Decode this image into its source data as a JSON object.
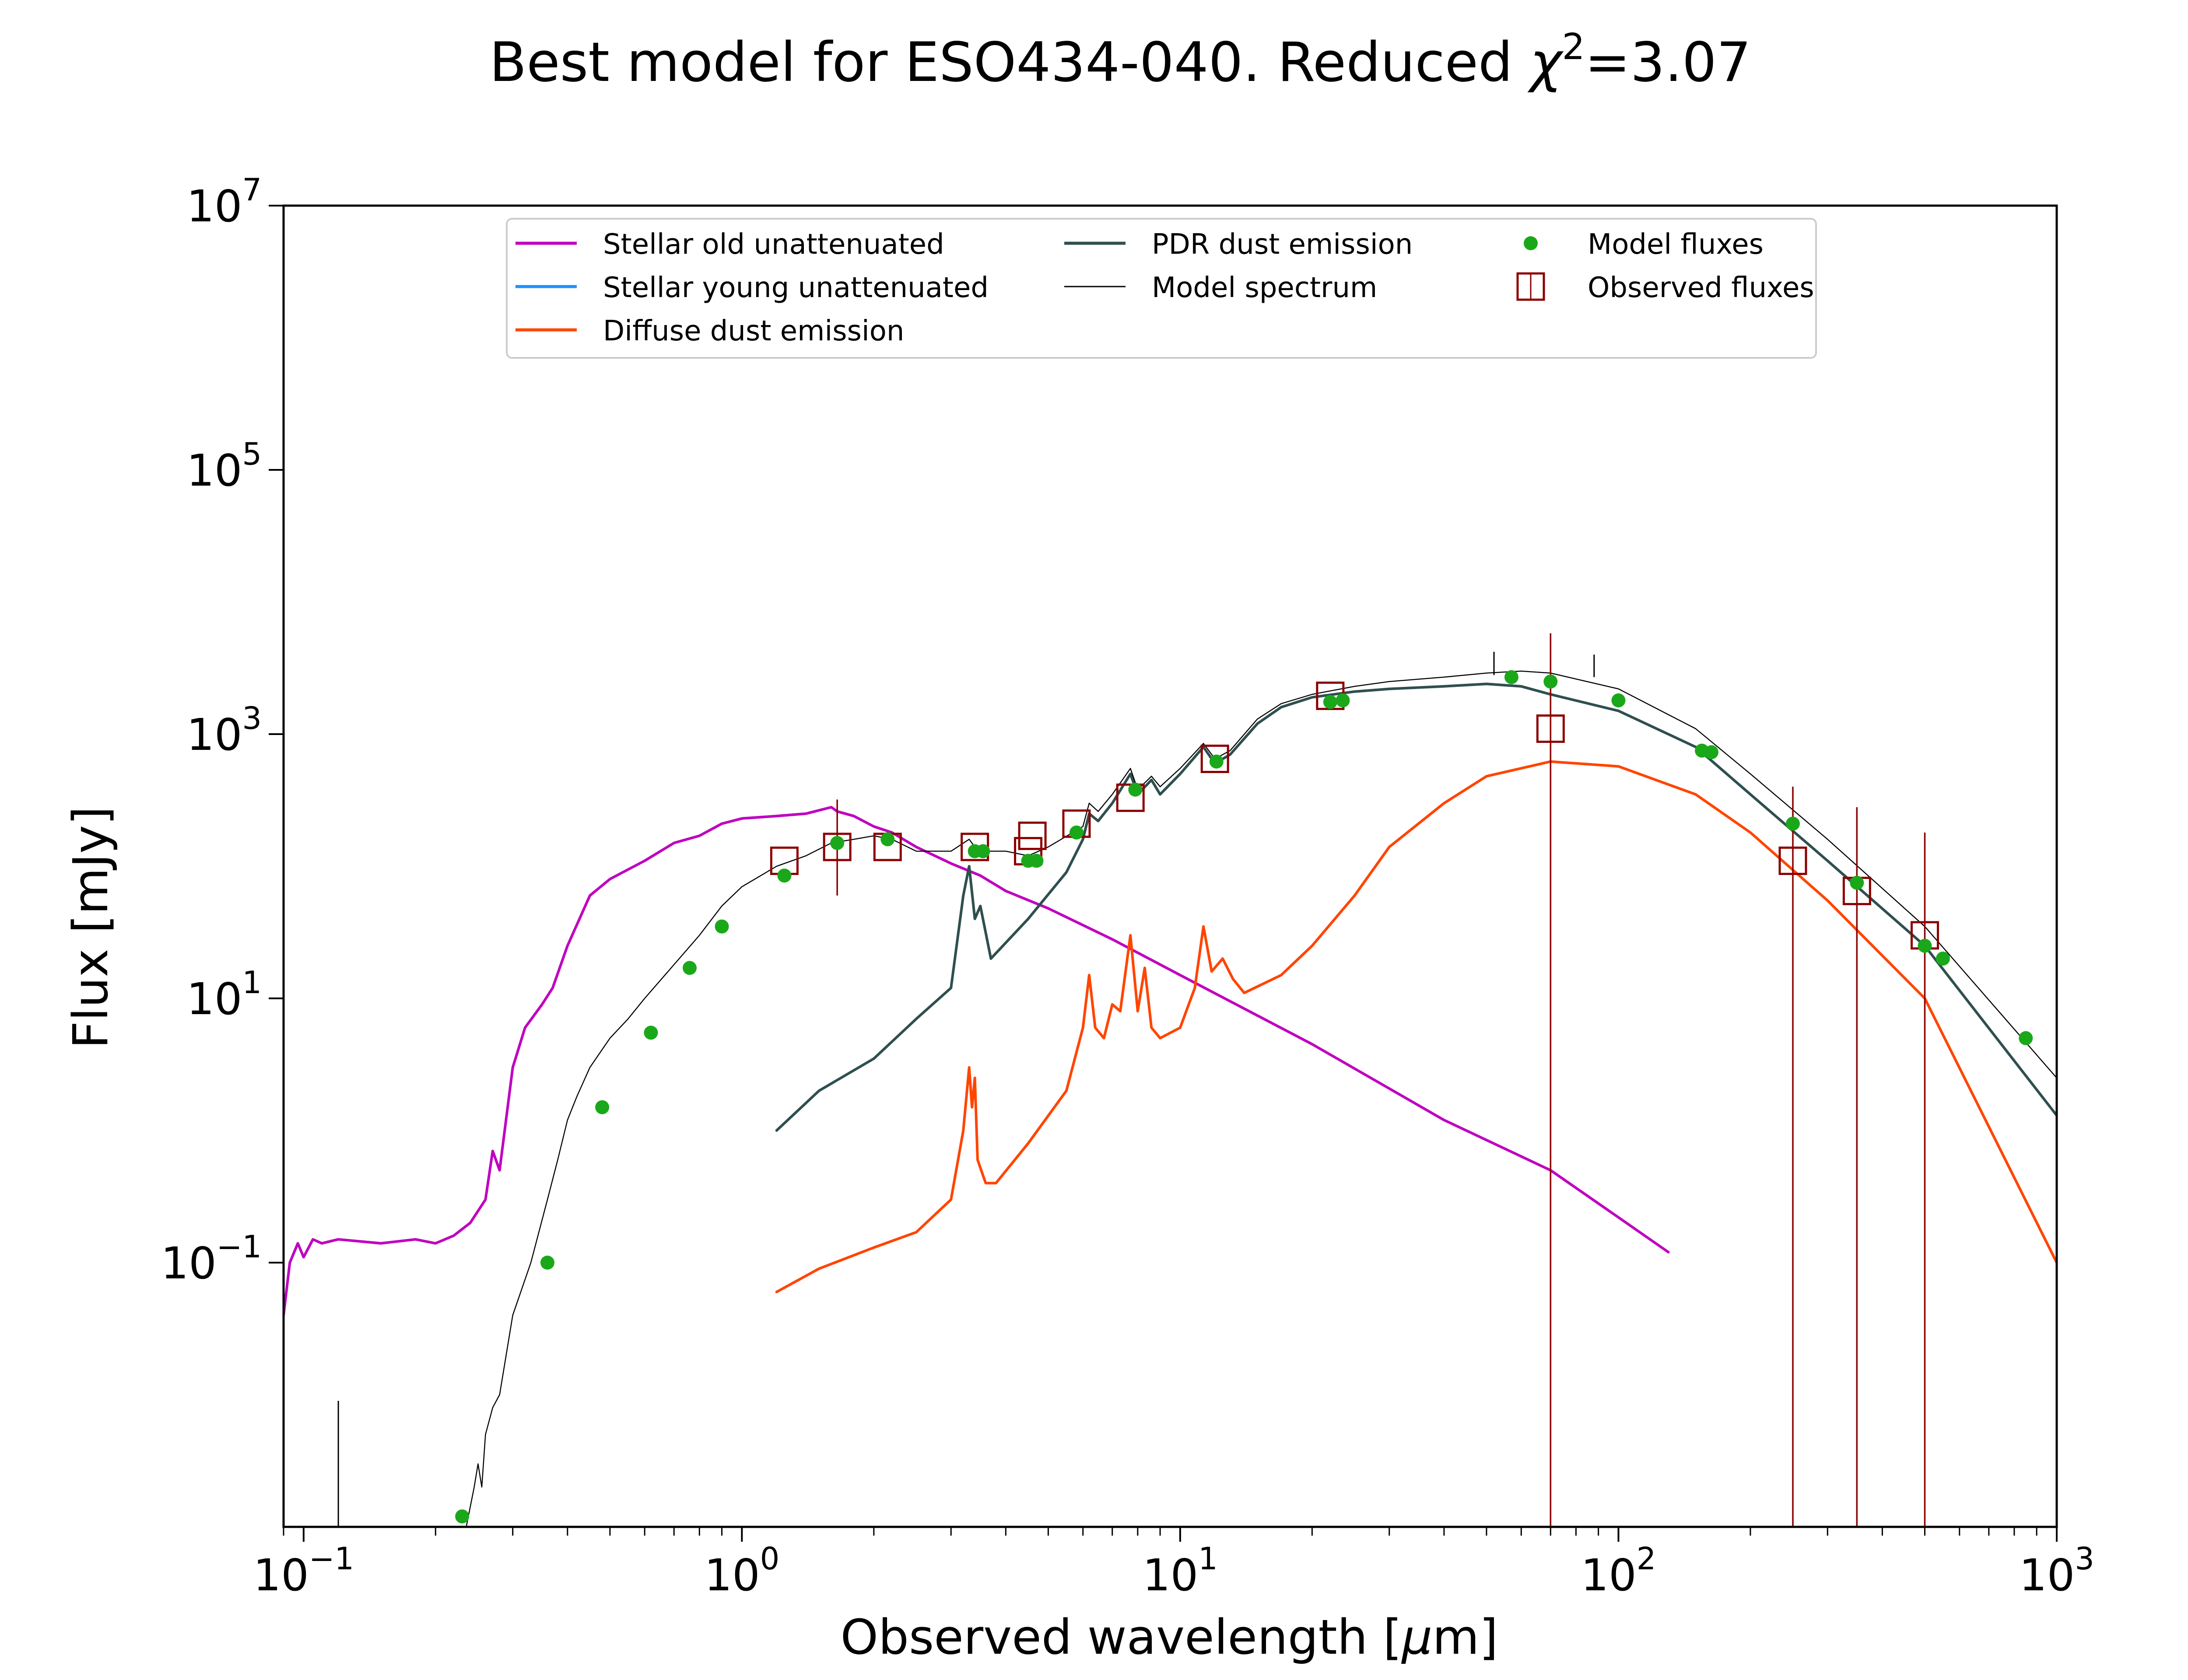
{
  "chart_data": {
    "type": "line",
    "title_main": "Best model for ESO434-040. Reduced ",
    "title_chi": "χ",
    "title_sup": "2",
    "title_value": "=3.07",
    "xlabel_main": "Observed wavelength [",
    "xlabel_mu": "μ",
    "xlabel_end": "m]",
    "ylabel": "Flux [mJy]",
    "x_scale": "log",
    "y_scale": "log",
    "xlim": [
      0.09,
      1000
    ],
    "ylim": [
      0.001,
      10000000
    ],
    "x_ticks": [
      {
        "value": 0.1,
        "base": "10",
        "exp": "−1"
      },
      {
        "value": 1,
        "base": "10",
        "exp": "0"
      },
      {
        "value": 10,
        "base": "10",
        "exp": "1"
      },
      {
        "value": 100,
        "base": "10",
        "exp": "2"
      },
      {
        "value": 1000,
        "base": "10",
        "exp": "3"
      }
    ],
    "y_ticks": [
      {
        "value": 0.1,
        "base": "10",
        "exp": "−1"
      },
      {
        "value": 10,
        "base": "10",
        "exp": "1"
      },
      {
        "value": 1000,
        "base": "10",
        "exp": "3"
      },
      {
        "value": 100000,
        "base": "10",
        "exp": "5"
      },
      {
        "value": 10000000,
        "base": "10",
        "exp": "7"
      }
    ],
    "legend": [
      {
        "label": "Stellar old unattenuated",
        "kind": "line",
        "color": "#bf00bf",
        "col": 0,
        "row": 0
      },
      {
        "label": "Stellar young unattenuated",
        "kind": "line",
        "color": "#1e90ff",
        "col": 0,
        "row": 1
      },
      {
        "label": "Diffuse dust emission",
        "kind": "line",
        "color": "#ff4500",
        "col": 0,
        "row": 2
      },
      {
        "label": "PDR dust emission",
        "kind": "line",
        "color": "#2f4f4f",
        "col": 1,
        "row": 0
      },
      {
        "label": "Model spectrum",
        "kind": "thinline",
        "color": "#000000",
        "col": 1,
        "row": 1
      },
      {
        "label": "Model fluxes",
        "kind": "dot",
        "color": "#1aa81a",
        "col": 2,
        "row": 0
      },
      {
        "label": "Observed fluxes",
        "kind": "square",
        "color": "#8b0000",
        "col": 2,
        "row": 1
      }
    ],
    "series": [
      {
        "name": "Stellar old unattenuated",
        "color": "#bf00bf",
        "width": 6,
        "x": [
          0.09,
          0.093,
          0.097,
          0.1,
          0.105,
          0.11,
          0.12,
          0.15,
          0.18,
          0.2,
          0.22,
          0.24,
          0.26,
          0.27,
          0.28,
          0.3,
          0.32,
          0.35,
          0.37,
          0.4,
          0.45,
          0.5,
          0.6,
          0.7,
          0.8,
          0.9,
          1.0,
          1.2,
          1.4,
          1.6,
          1.65,
          1.8,
          2.0,
          2.2,
          2.5,
          3.0,
          3.5,
          4.0,
          5.0,
          7.0,
          10,
          20,
          40,
          70,
          100,
          130
        ],
        "y": [
          0.04,
          0.1,
          0.14,
          0.11,
          0.15,
          0.14,
          0.15,
          0.14,
          0.15,
          0.14,
          0.16,
          0.2,
          0.3,
          0.7,
          0.5,
          3,
          6,
          9,
          12,
          25,
          60,
          80,
          110,
          150,
          170,
          210,
          230,
          240,
          250,
          280,
          260,
          240,
          200,
          180,
          140,
          105,
          85,
          65,
          48,
          28,
          15,
          4.5,
          1.2,
          0.5,
          0.22,
          0.12
        ]
      },
      {
        "name": "Stellar young unattenuated",
        "color": "#1e90ff",
        "width": 6,
        "x": [],
        "y": []
      },
      {
        "name": "Diffuse dust emission",
        "color": "#ff4500",
        "width": 6,
        "x": [
          1.2,
          1.5,
          2.0,
          2.5,
          3.0,
          3.2,
          3.3,
          3.35,
          3.4,
          3.45,
          3.6,
          3.8,
          4.5,
          5.5,
          6.0,
          6.2,
          6.4,
          6.7,
          7.0,
          7.3,
          7.7,
          8.0,
          8.3,
          8.6,
          9.0,
          10,
          10.8,
          11.3,
          11.8,
          12.5,
          13.2,
          14,
          17,
          20,
          25,
          30,
          40,
          50,
          70,
          100,
          150,
          200,
          300,
          500,
          1000
        ],
        "y": [
          0.06,
          0.09,
          0.13,
          0.17,
          0.3,
          1.0,
          3.0,
          1.5,
          2.5,
          0.6,
          0.4,
          0.4,
          0.8,
          2.0,
          6.0,
          15,
          6.0,
          5.0,
          9.0,
          8.0,
          30,
          8.0,
          17,
          6.0,
          5.0,
          6.0,
          12,
          35,
          16,
          20,
          14,
          11,
          15,
          25,
          60,
          140,
          300,
          480,
          620,
          570,
          350,
          180,
          55,
          10,
          0.1
        ]
      },
      {
        "name": "PDR dust emission",
        "color": "#2f4f4f",
        "width": 6,
        "x": [
          1.2,
          1.5,
          2.0,
          2.5,
          3.0,
          3.2,
          3.3,
          3.4,
          3.5,
          3.7,
          4.5,
          5.5,
          6.0,
          6.2,
          6.5,
          7.0,
          7.7,
          8.0,
          8.6,
          9.0,
          10,
          11.3,
          12,
          13,
          15,
          17,
          20,
          25,
          30,
          40,
          50,
          60,
          70,
          100,
          150,
          200,
          300,
          500,
          1000
        ],
        "y": [
          1.0,
          2.0,
          3.5,
          7.0,
          12,
          60,
          100,
          40,
          50,
          20,
          40,
          90,
          160,
          250,
          220,
          300,
          500,
          350,
          450,
          350,
          500,
          800,
          600,
          700,
          1200,
          1600,
          1900,
          2100,
          2200,
          2300,
          2400,
          2300,
          2000,
          1500,
          800,
          350,
          110,
          25,
          1.3
        ]
      },
      {
        "name": "Model spectrum",
        "color": "#000000",
        "width": 2.4,
        "x": [
          0.235,
          0.245,
          0.25,
          0.255,
          0.26,
          0.27,
          0.28,
          0.3,
          0.33,
          0.36,
          0.38,
          0.4,
          0.42,
          0.45,
          0.5,
          0.55,
          0.6,
          0.7,
          0.8,
          0.9,
          1.0,
          1.2,
          1.4,
          1.6,
          1.8,
          2.0,
          2.2,
          2.5,
          3.0,
          3.3,
          3.4,
          3.6,
          4.0,
          4.5,
          5.0,
          6.0,
          6.2,
          6.5,
          7.0,
          7.7,
          8.0,
          8.6,
          9.0,
          10,
          11.3,
          12,
          13,
          15,
          17,
          20,
          25,
          30,
          40,
          50,
          60,
          70,
          100,
          150,
          200,
          300,
          500,
          1000
        ],
        "y": [
          0.001,
          0.002,
          0.003,
          0.002,
          0.005,
          0.008,
          0.01,
          0.04,
          0.1,
          0.3,
          0.6,
          1.2,
          1.8,
          3.0,
          5.0,
          7.0,
          10,
          18,
          30,
          50,
          70,
          100,
          120,
          150,
          160,
          170,
          160,
          130,
          130,
          160,
          140,
          130,
          130,
          120,
          140,
          200,
          300,
          260,
          350,
          550,
          380,
          480,
          400,
          550,
          850,
          650,
          750,
          1300,
          1700,
          2000,
          2300,
          2500,
          2700,
          2900,
          3000,
          2900,
          2200,
          1100,
          500,
          160,
          35,
          2.5
        ]
      }
    ],
    "model_spikes": [
      {
        "x": 0.12,
        "y_top": 0.009,
        "y_bottom": 0.001
      },
      {
        "x": 52,
        "y_top": 4200,
        "y_bottom": 2800
      },
      {
        "x": 88,
        "y_top": 4000,
        "y_bottom": 2700
      }
    ],
    "model_fluxes": {
      "name": "Model fluxes",
      "color": "#1aa81a",
      "x": [
        0.23,
        0.36,
        0.48,
        0.62,
        0.76,
        0.9,
        1.25,
        1.65,
        2.15,
        3.4,
        3.55,
        4.5,
        4.7,
        5.8,
        7.9,
        12.1,
        22,
        23.5,
        57,
        70,
        100,
        155,
        163,
        250,
        350,
        500,
        550,
        850
      ],
      "y": [
        0.0012,
        0.1,
        1.5,
        5.5,
        17,
        35,
        85,
        150,
        160,
        130,
        130,
        110,
        110,
        180,
        380,
        620,
        1750,
        1800,
        2700,
        2500,
        1800,
        750,
        730,
        210,
        75,
        25,
        20,
        5
      ]
    },
    "observed_fluxes": {
      "name": "Observed fluxes",
      "color": "#8b0000",
      "points": [
        {
          "x": 1.25,
          "y": 110
        },
        {
          "x": 1.65,
          "y": 140,
          "yerr_low": 60,
          "yerr_high": 320
        },
        {
          "x": 2.15,
          "y": 140
        },
        {
          "x": 3.4,
          "y": 140
        },
        {
          "x": 4.5,
          "y": 130
        },
        {
          "x": 4.6,
          "y": 170
        },
        {
          "x": 5.8,
          "y": 210
        },
        {
          "x": 7.7,
          "y": 330
        },
        {
          "x": 12,
          "y": 650
        },
        {
          "x": 22,
          "y": 1950
        },
        {
          "x": 70,
          "y": 1100,
          "yerr_low": 0.001,
          "yerr_high": 5800
        },
        {
          "x": 250,
          "y": 110,
          "yerr_low": 0.001,
          "yerr_high": 400
        },
        {
          "x": 350,
          "y": 65,
          "yerr_low": 0.001,
          "yerr_high": 280
        },
        {
          "x": 500,
          "y": 30,
          "yerr_low": 0.001,
          "yerr_high": 180
        }
      ]
    }
  }
}
